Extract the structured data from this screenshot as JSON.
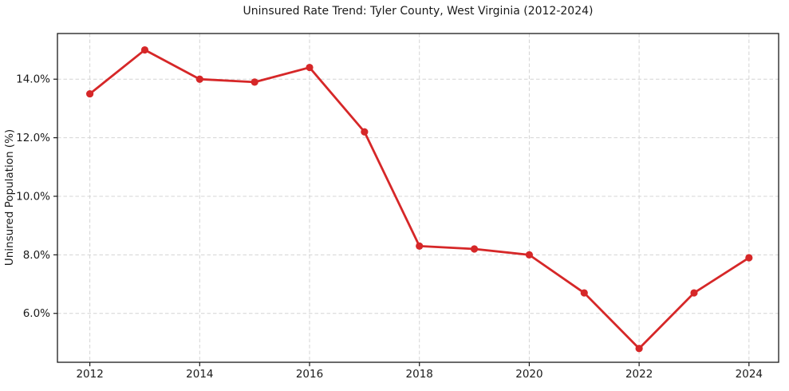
{
  "chart_data": {
    "type": "line",
    "title": "Uninsured Rate Trend: Tyler County, West Virginia (2012-2024)",
    "xlabel": "",
    "ylabel": "Uninsured Population (%)",
    "x": [
      2012,
      2013,
      2014,
      2015,
      2016,
      2017,
      2018,
      2019,
      2020,
      2021,
      2022,
      2023,
      2024
    ],
    "series": [
      {
        "name": "Uninsured Rate",
        "values": [
          13.5,
          15.0,
          14.0,
          13.9,
          14.4,
          12.2,
          8.3,
          8.2,
          8.0,
          6.7,
          4.8,
          6.7,
          7.9
        ],
        "color": "#d62728"
      }
    ],
    "xticks": [
      2012,
      2014,
      2016,
      2018,
      2020,
      2022,
      2024
    ],
    "xtick_labels": [
      "2012",
      "2014",
      "2016",
      "2018",
      "2020",
      "2022",
      "2024"
    ],
    "yticks": [
      6,
      8,
      10,
      12,
      14
    ],
    "ytick_labels": [
      "6.0%",
      "8.0%",
      "10.0%",
      "12.0%",
      "14.0%"
    ],
    "xlim": [
      2011.41,
      2024.54
    ],
    "ylim": [
      4.33,
      15.56
    ],
    "grid": "both-dashed",
    "legend": "none",
    "grid_color": "#d4d4d4",
    "spine_color": "#1a1a1a",
    "tick_color": "#1a1a1a",
    "background_color": "#ffffff"
  }
}
